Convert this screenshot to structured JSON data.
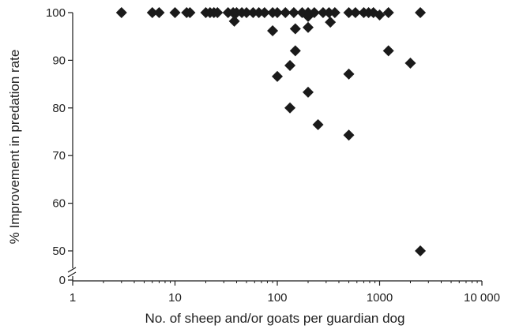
{
  "chart_data": {
    "type": "scatter",
    "title": "",
    "xlabel": "No. of sheep and/or goats per guardian dog",
    "ylabel": "% Improvement in predation rate",
    "x_scale": "log",
    "xlim": [
      1,
      10000
    ],
    "ylim": [
      0,
      100
    ],
    "y_axis_break": [
      0,
      45
    ],
    "x_ticks": [
      {
        "value": 1,
        "label": "1"
      },
      {
        "value": 10,
        "label": "10"
      },
      {
        "value": 100,
        "label": "100"
      },
      {
        "value": 1000,
        "label": "1000"
      },
      {
        "value": 10000,
        "label": "10 000"
      }
    ],
    "y_ticks": [
      {
        "value": 0,
        "label": "0"
      },
      {
        "value": 50,
        "label": "50"
      },
      {
        "value": 60,
        "label": "60"
      },
      {
        "value": 70,
        "label": "70"
      },
      {
        "value": 80,
        "label": "80"
      },
      {
        "value": 90,
        "label": "90"
      },
      {
        "value": 100,
        "label": "100"
      }
    ],
    "grid": false,
    "marker": "diamond",
    "marker_color": "#1a1a1a",
    "points": [
      {
        "x": 3,
        "y": 100
      },
      {
        "x": 6,
        "y": 100
      },
      {
        "x": 7,
        "y": 100
      },
      {
        "x": 10,
        "y": 100
      },
      {
        "x": 13,
        "y": 100
      },
      {
        "x": 14,
        "y": 100
      },
      {
        "x": 20,
        "y": 100
      },
      {
        "x": 22,
        "y": 100
      },
      {
        "x": 24,
        "y": 100
      },
      {
        "x": 26,
        "y": 100
      },
      {
        "x": 33,
        "y": 100
      },
      {
        "x": 37,
        "y": 100
      },
      {
        "x": 40,
        "y": 100
      },
      {
        "x": 45,
        "y": 100
      },
      {
        "x": 50,
        "y": 100
      },
      {
        "x": 58,
        "y": 100
      },
      {
        "x": 66,
        "y": 100
      },
      {
        "x": 75,
        "y": 100
      },
      {
        "x": 90,
        "y": 100
      },
      {
        "x": 100,
        "y": 100
      },
      {
        "x": 120,
        "y": 100
      },
      {
        "x": 145,
        "y": 100
      },
      {
        "x": 175,
        "y": 100
      },
      {
        "x": 200,
        "y": 100
      },
      {
        "x": 230,
        "y": 100
      },
      {
        "x": 280,
        "y": 100
      },
      {
        "x": 320,
        "y": 100
      },
      {
        "x": 365,
        "y": 100
      },
      {
        "x": 500,
        "y": 100
      },
      {
        "x": 580,
        "y": 100
      },
      {
        "x": 700,
        "y": 100
      },
      {
        "x": 780,
        "y": 100
      },
      {
        "x": 870,
        "y": 100
      },
      {
        "x": 1000,
        "y": 99.5
      },
      {
        "x": 1220,
        "y": 100
      },
      {
        "x": 2500,
        "y": 100
      },
      {
        "x": 38,
        "y": 98.2
      },
      {
        "x": 200,
        "y": 99.2
      },
      {
        "x": 330,
        "y": 98.0
      },
      {
        "x": 150,
        "y": 96.6
      },
      {
        "x": 200,
        "y": 96.9
      },
      {
        "x": 90,
        "y": 96.2
      },
      {
        "x": 150,
        "y": 92.0
      },
      {
        "x": 1220,
        "y": 92.0
      },
      {
        "x": 2000,
        "y": 89.4
      },
      {
        "x": 133,
        "y": 88.9
      },
      {
        "x": 100,
        "y": 86.6
      },
      {
        "x": 500,
        "y": 87.1
      },
      {
        "x": 200,
        "y": 83.3
      },
      {
        "x": 133,
        "y": 80.0
      },
      {
        "x": 250,
        "y": 76.5
      },
      {
        "x": 500,
        "y": 74.3
      },
      {
        "x": 2500,
        "y": 50.0
      }
    ]
  }
}
